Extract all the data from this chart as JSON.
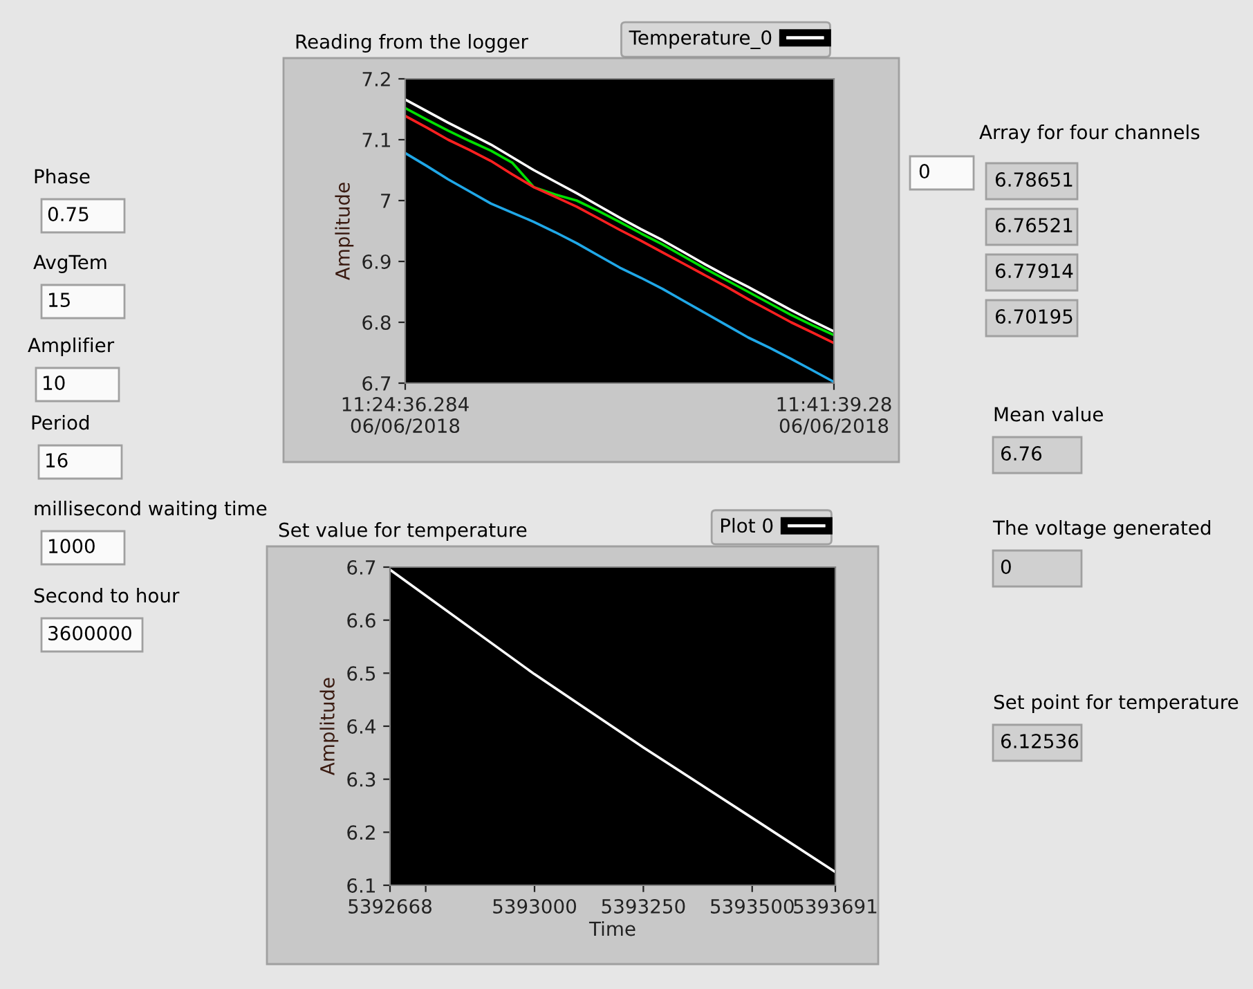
{
  "chart_data": [
    {
      "type": "other",
      "annotations": [
        "Phase",
        "0.75",
        "AvgTem",
        "15",
        "Amplifier",
        "10",
        "Period",
        "16",
        "millisecond waiting time",
        "1000",
        "Second to hour",
        "3600000"
      ]
    },
    {
      "type": "line",
      "title": "Reading from the logger",
      "ylabel": "Amplitude",
      "legend": "top right",
      "categories": [
        "11:24:36.284\n06/06/2018",
        null,
        null,
        null,
        null,
        null,
        null,
        null,
        null,
        null,
        null,
        null,
        null,
        null,
        null,
        null,
        null,
        null,
        null,
        null,
        "11:41:39.28\n06/06/2018"
      ],
      "ylim": [
        6.7,
        7.2
      ],
      "yticks": [
        {
          "value": 6.7,
          "label": "6.7"
        },
        {
          "value": 6.8,
          "label": "6.8"
        },
        {
          "value": 6.9,
          "label": "6.9"
        },
        {
          "value": 7,
          "label": "7"
        },
        {
          "value": 7.1,
          "label": "7.1"
        },
        {
          "value": 7.2,
          "label": "7.2"
        }
      ],
      "series": [
        {
          "name": "Temperature_0",
          "color": "#ffffff",
          "values": [
            7.166,
            7.147,
            7.128,
            7.11,
            7.092,
            7.071,
            7.05,
            7.031,
            7.012,
            6.992,
            6.972,
            6.953,
            6.935,
            6.915,
            6.895,
            6.876,
            6.858,
            6.839,
            6.82,
            6.802,
            6.785
          ]
        },
        {
          "color": "#00e000",
          "values": [
            7.152,
            7.133,
            7.115,
            7.098,
            7.082,
            7.062,
            7.022,
            7.01,
            7.0,
            6.983,
            6.965,
            6.946,
            6.928,
            6.908,
            6.888,
            6.869,
            6.85,
            6.831,
            6.812,
            6.795,
            6.779
          ]
        },
        {
          "color": "#ff2020",
          "values": [
            7.139,
            7.12,
            7.1,
            7.083,
            7.065,
            7.043,
            7.022,
            7.006,
            6.99,
            6.971,
            6.952,
            6.934,
            6.915,
            6.896,
            6.877,
            6.858,
            6.838,
            6.819,
            6.8,
            6.783,
            6.766
          ]
        },
        {
          "color": "#20a8e8",
          "values": [
            7.078,
            7.057,
            7.035,
            7.015,
            6.995,
            6.98,
            6.965,
            6.948,
            6.93,
            6.91,
            6.89,
            6.873,
            6.855,
            6.835,
            6.815,
            6.795,
            6.775,
            6.758,
            6.74,
            6.721,
            6.702
          ]
        }
      ]
    },
    {
      "type": "line",
      "title": "Set value for temperature",
      "xlabel": "Time",
      "ylabel": "Amplitude",
      "legend": "top right",
      "grid": false,
      "xlim": [
        5392668,
        5393691
      ],
      "xticks": [
        5392668,
        {
          "value": 5392750,
          "label": null
        },
        5393000,
        5393250,
        5393500,
        5393691
      ],
      "ylim": [
        6.1,
        6.7
      ],
      "yticks": [
        6.1,
        6.2,
        6.3,
        6.4,
        6.5,
        6.6,
        6.7
      ],
      "series": [
        {
          "name": "Plot 0",
          "color": "#ffffff",
          "x": [
            5392668,
            5393000,
            5393250,
            5393500,
            5393691
          ],
          "values": [
            6.695,
            6.498,
            6.36,
            6.227,
            6.125
          ]
        }
      ]
    },
    {
      "type": "other",
      "annotations": [
        "Array for four channels",
        "0",
        "6.78651",
        "6.76521",
        "6.77914",
        "6.70195",
        "Mean value",
        "6.76",
        "The voltage generated",
        "0",
        "Set point for temperature",
        "6.12536"
      ]
    }
  ]
}
